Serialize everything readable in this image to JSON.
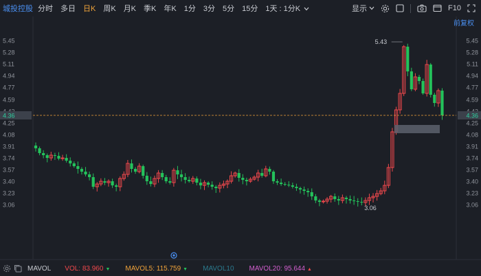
{
  "toolbar": {
    "stock_name": "城投控股",
    "timeframes": [
      "分时",
      "多日",
      "日K",
      "周K",
      "月K",
      "季K",
      "年K",
      "1分",
      "3分",
      "5分",
      "15分"
    ],
    "active_index": 2,
    "dropdown_label": "1天 : 1分K",
    "display_label": "显示",
    "f10_label": "F10"
  },
  "adjust_label": "前复权",
  "axis": {
    "ticks": [
      "5.45",
      "5.28",
      "5.11",
      "4.94",
      "4.77",
      "4.59",
      "4.42",
      "4.25",
      "4.08",
      "3.91",
      "3.74",
      "3.57",
      "3.40",
      "3.23",
      "3.06"
    ],
    "tick_values": [
      5.45,
      5.28,
      5.11,
      4.94,
      4.77,
      4.59,
      4.42,
      4.25,
      4.08,
      3.91,
      3.74,
      3.57,
      3.4,
      3.23,
      3.06
    ],
    "current_price": "4.36",
    "current_value": 4.36
  },
  "annotations": {
    "high_label": "5.43",
    "high_value": 5.43,
    "low_label": "3.06",
    "low_value": 3.06
  },
  "chart_data": {
    "type": "candlestick",
    "y_range": [
      2.95,
      5.56
    ],
    "series_close": [
      3.88,
      3.81,
      3.78,
      3.74,
      3.78,
      3.77,
      3.73,
      3.74,
      3.7,
      3.66,
      3.62,
      3.58,
      3.54,
      3.5,
      3.46,
      3.32,
      3.36,
      3.4,
      3.38,
      3.4,
      3.34,
      3.32,
      3.44,
      3.5,
      3.66,
      3.58,
      3.54,
      3.62,
      3.48,
      3.4,
      3.36,
      3.44,
      3.52,
      3.46,
      3.4,
      3.38,
      3.56,
      3.5,
      3.46,
      3.42,
      3.4,
      3.44,
      3.38,
      3.34,
      3.38,
      3.35,
      3.32,
      3.3,
      3.34,
      3.36,
      3.4,
      3.48,
      3.52,
      3.45,
      3.42,
      3.4,
      3.43,
      3.46,
      3.52,
      3.48,
      3.58,
      3.54,
      3.4,
      3.38,
      3.36,
      3.35,
      3.34,
      3.32,
      3.3,
      3.28,
      3.26,
      3.24,
      3.18,
      3.12,
      3.1,
      3.11,
      3.14,
      3.18,
      3.14,
      3.12,
      3.16,
      3.14,
      3.12,
      3.11,
      3.1,
      3.09,
      3.12,
      3.16,
      3.18,
      3.22,
      3.26,
      3.34,
      3.6,
      4.12,
      4.44,
      4.68,
      5.36,
      5.0,
      4.74,
      4.92,
      4.86,
      4.68,
      5.1,
      4.66,
      4.54,
      4.72,
      4.36
    ]
  },
  "bottom": {
    "mavol_label": "MAVOL",
    "vol": "VOL: 83.960",
    "mavol5": "MAVOL5: 115.759",
    "mavol10": "MAVOL10",
    "mavol20": "MAVOL20: 95.644",
    "arrow_down": "▼",
    "arrow_up": "▲"
  },
  "colors": {
    "up": "#f0484c",
    "down": "#24c25b",
    "accent": "#4a8ff0",
    "active": "#f0a33a",
    "background": "#1c1f26"
  }
}
